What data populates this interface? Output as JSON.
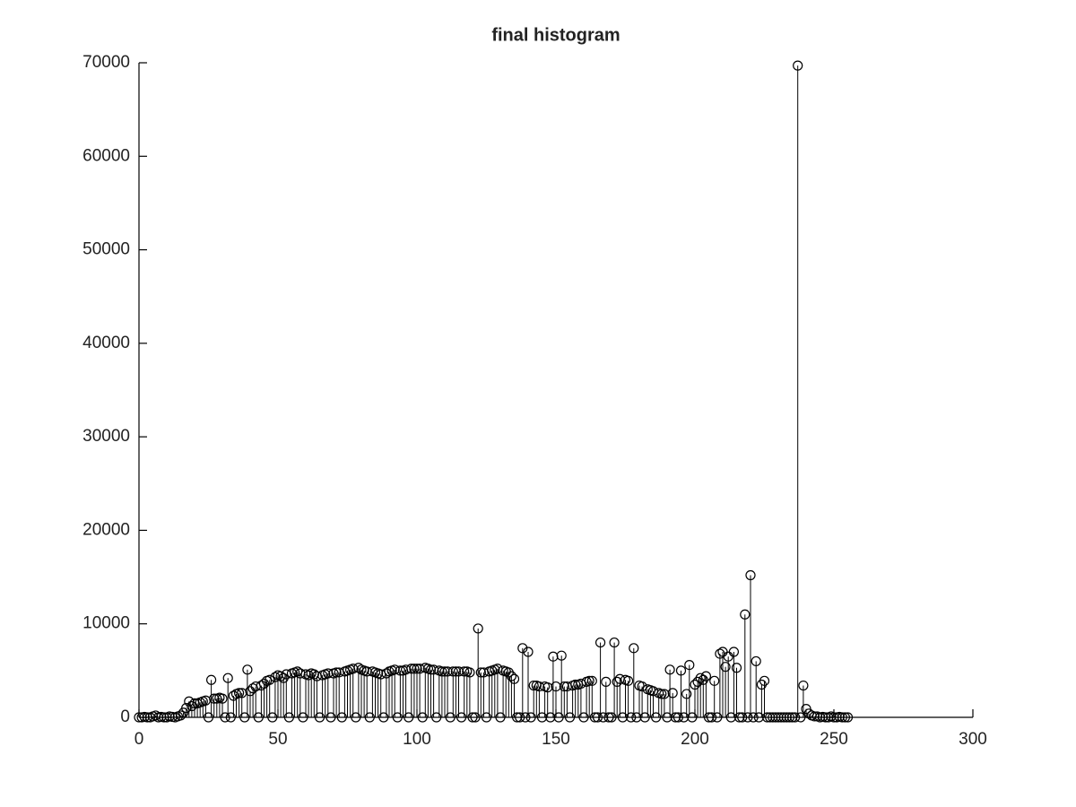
{
  "chart_data": {
    "type": "stem",
    "title": "final histogram",
    "x": [
      0,
      1,
      2,
      3,
      4,
      5,
      6,
      7,
      8,
      9,
      10,
      11,
      12,
      13,
      14,
      15,
      16,
      17,
      18,
      19,
      20,
      21,
      22,
      23,
      24,
      25,
      26,
      27,
      28,
      29,
      30,
      31,
      32,
      33,
      34,
      35,
      36,
      37,
      38,
      39,
      40,
      41,
      42,
      43,
      44,
      45,
      46,
      47,
      48,
      49,
      50,
      51,
      52,
      53,
      54,
      55,
      56,
      57,
      58,
      59,
      60,
      61,
      62,
      63,
      64,
      65,
      66,
      67,
      68,
      69,
      70,
      71,
      72,
      73,
      74,
      75,
      76,
      77,
      78,
      79,
      80,
      81,
      82,
      83,
      84,
      85,
      86,
      87,
      88,
      89,
      90,
      91,
      92,
      93,
      94,
      95,
      96,
      97,
      98,
      99,
      100,
      101,
      102,
      103,
      104,
      105,
      106,
      107,
      108,
      109,
      110,
      111,
      112,
      113,
      114,
      115,
      116,
      117,
      118,
      119,
      120,
      121,
      122,
      123,
      124,
      125,
      126,
      127,
      128,
      129,
      130,
      131,
      132,
      133,
      134,
      135,
      136,
      137,
      138,
      139,
      140,
      141,
      142,
      143,
      144,
      145,
      146,
      147,
      148,
      149,
      150,
      151,
      152,
      153,
      154,
      155,
      156,
      157,
      158,
      159,
      160,
      161,
      162,
      163,
      164,
      165,
      166,
      167,
      168,
      169,
      170,
      171,
      172,
      173,
      174,
      175,
      176,
      177,
      178,
      179,
      180,
      181,
      182,
      183,
      184,
      185,
      186,
      187,
      188,
      189,
      190,
      191,
      192,
      193,
      194,
      195,
      196,
      197,
      198,
      199,
      200,
      201,
      202,
      203,
      204,
      205,
      206,
      207,
      208,
      209,
      210,
      211,
      212,
      213,
      214,
      215,
      216,
      217,
      218,
      219,
      220,
      221,
      222,
      223,
      224,
      225,
      226,
      227,
      228,
      229,
      230,
      231,
      232,
      233,
      234,
      235,
      236,
      237,
      238,
      239,
      240,
      241,
      242,
      243,
      244,
      245,
      246,
      247,
      248,
      249,
      250,
      251,
      252,
      253,
      254,
      255
    ],
    "values": [
      0,
      0,
      50,
      0,
      0,
      100,
      200,
      0,
      50,
      0,
      0,
      100,
      50,
      0,
      100,
      200,
      500,
      1000,
      1700,
      1200,
      1500,
      1500,
      1600,
      1700,
      1800,
      0,
      4000,
      2000,
      2000,
      2100,
      2000,
      0,
      4200,
      0,
      2300,
      2500,
      2600,
      2600,
      0,
      5100,
      2800,
      3100,
      3300,
      0,
      3400,
      3600,
      3900,
      4000,
      0,
      4300,
      4500,
      4400,
      4200,
      4600,
      0,
      4700,
      4800,
      4900,
      4700,
      0,
      4600,
      4500,
      4700,
      4600,
      4400,
      0,
      4500,
      4600,
      4700,
      0,
      4700,
      4800,
      4800,
      0,
      4900,
      5000,
      5100,
      5200,
      0,
      5300,
      5100,
      5000,
      4900,
      0,
      4900,
      4800,
      4700,
      4600,
      0,
      4700,
      4900,
      5000,
      5100,
      0,
      5000,
      5000,
      5100,
      0,
      5200,
      5200,
      5200,
      5200,
      0,
      5300,
      5200,
      5100,
      5100,
      0,
      5000,
      4900,
      4900,
      4900,
      0,
      4900,
      4900,
      4900,
      0,
      4900,
      4900,
      4800,
      0,
      0,
      9500,
      4800,
      4800,
      0,
      4900,
      5000,
      5100,
      5200,
      0,
      5000,
      4900,
      4800,
      4400,
      4100,
      0,
      0,
      7400,
      0,
      7000,
      0,
      3400,
      3400,
      3300,
      0,
      3300,
      3200,
      0,
      6500,
      3300,
      0,
      6600,
      3300,
      3300,
      0,
      3400,
      3500,
      3500,
      3600,
      0,
      3800,
      3900,
      3900,
      0,
      0,
      8000,
      0,
      3800,
      0,
      0,
      8000,
      3800,
      4100,
      0,
      4000,
      3900,
      0,
      7400,
      0,
      3400,
      3300,
      0,
      3000,
      2900,
      2800,
      0,
      2600,
      2500,
      2500,
      0,
      5100,
      2600,
      0,
      0,
      5000,
      0,
      2500,
      5600,
      0,
      3500,
      3800,
      4200,
      4000,
      4400,
      0,
      0,
      3900,
      0,
      6800,
      7000,
      5400,
      6500,
      0,
      7000,
      5300,
      0,
      0,
      11000,
      0,
      15200,
      0,
      6000,
      0,
      3500,
      3900,
      0,
      0,
      0,
      0,
      0,
      0,
      0,
      0,
      0,
      0,
      0,
      69700,
      0,
      3400,
      900,
      400,
      200,
      100,
      100,
      0,
      50,
      0,
      0,
      100,
      0,
      0,
      50,
      0,
      0,
      0
    ],
    "color": "#000000",
    "xlim": [
      0,
      300
    ],
    "xticks": [
      0,
      50,
      100,
      150,
      200,
      250,
      300
    ],
    "ylim": [
      0,
      70000
    ],
    "yticks": [
      0,
      10000,
      20000,
      30000,
      40000,
      50000,
      60000,
      70000
    ],
    "grid": false
  }
}
